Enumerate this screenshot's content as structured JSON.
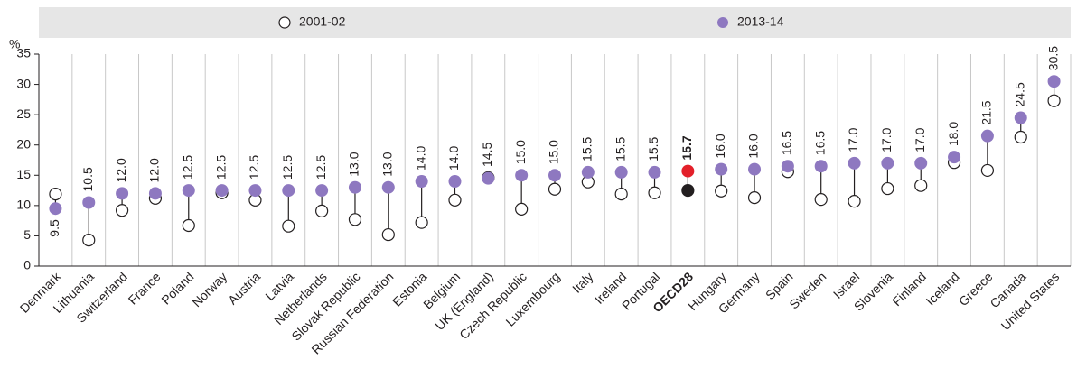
{
  "chart_data": {
    "type": "dot",
    "y_label": "%",
    "categories": [
      "Denmark",
      "Lithuania",
      "Switzerland",
      "France",
      "Poland",
      "Norway",
      "Austria",
      "Latvia",
      "Netherlands",
      "Slovak Republic",
      "Russian Federation",
      "Estonia",
      "Belgium",
      "UK (England)",
      "Czech Republic",
      "Luxembourg",
      "Italy",
      "Ireland",
      "Portugal",
      "OECD28",
      "Hungary",
      "Germany",
      "Spain",
      "Sweden",
      "Israel",
      "Slovenia",
      "Finland",
      "Iceland",
      "Greece",
      "Canada",
      "United States"
    ],
    "highlight": "OECD28",
    "series": [
      {
        "name": "2001-02",
        "color": "#ffffff",
        "highlight_color": "#231f20",
        "values": [
          11.9,
          4.3,
          9.2,
          11.2,
          6.7,
          12.1,
          10.9,
          6.6,
          9.1,
          7.7,
          5.2,
          7.2,
          10.9,
          14.6,
          9.4,
          12.7,
          13.9,
          11.9,
          12.1,
          12.5,
          12.4,
          11.3,
          15.6,
          11.0,
          10.7,
          12.8,
          13.3,
          17.1,
          15.8,
          21.3,
          27.3
        ]
      },
      {
        "name": "2013-14",
        "color": "#8e78c0",
        "highlight_color": "#e3202a",
        "values": [
          9.5,
          10.5,
          12,
          12,
          12.5,
          12.5,
          12.5,
          12.5,
          12.5,
          13,
          13,
          14,
          14,
          14.5,
          15,
          15,
          15.5,
          15.5,
          15.5,
          15.7,
          16,
          16,
          16.5,
          16.5,
          17,
          17,
          17,
          18,
          21.5,
          24.5,
          30.5
        ],
        "value_labels": [
          "9.5",
          "10.5",
          "12.0",
          "12.0",
          "12.5",
          "12.5",
          "12.5",
          "12.5",
          "12.5",
          "13.0",
          "13.0",
          "14.0",
          "14.0",
          "14.5",
          "15.0",
          "15.0",
          "15.5",
          "15.5",
          "15.5",
          "15.7",
          "16.0",
          "16.0",
          "16.5",
          "16.5",
          "17.0",
          "17.0",
          "17.0",
          "18.0",
          "21.5",
          "24.5",
          "30.5"
        ]
      }
    ],
    "ylim": [
      0,
      35
    ],
    "yticks": [
      0,
      5,
      10,
      15,
      20,
      25,
      30,
      35
    ]
  }
}
